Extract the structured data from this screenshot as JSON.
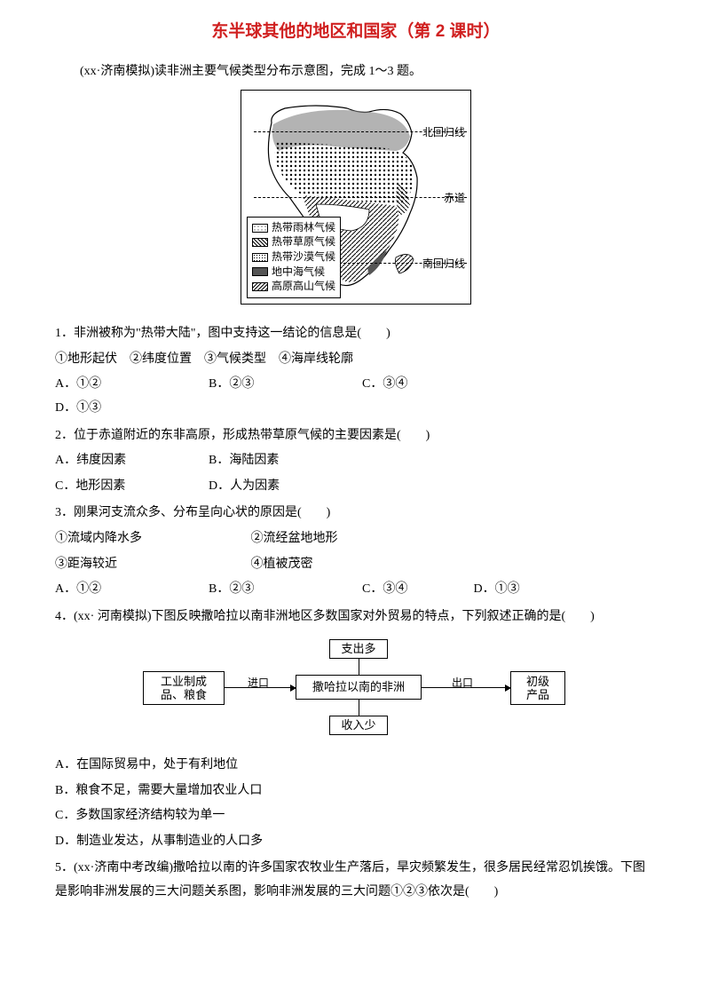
{
  "title": "东半球其他的地区和国家（第 2 课时）",
  "intro": "(xx·济南模拟)读非洲主要气候类型分布示意图，完成 1～3 题。",
  "map": {
    "line_labels": {
      "tropic_n": "北回归线",
      "equator": "赤道",
      "tropic_s": "南回归线"
    },
    "legend": [
      {
        "swatch": "sw-dots",
        "text": "热带雨林气候"
      },
      {
        "swatch": "sw-diag",
        "text": "热带草原气候"
      },
      {
        "swatch": "sw-sand",
        "text": "热带沙漠气候"
      },
      {
        "swatch": "sw-dark",
        "text": "地中海气候"
      },
      {
        "swatch": "sw-hatch",
        "text": "高原高山气候"
      }
    ]
  },
  "q1": {
    "stem": "1．非洲被称为\"热带大陆\"，图中支持这一结论的信息是(　　)",
    "circled": "①地形起伏　②纬度位置　③气候类型　④海岸线轮廓",
    "A": "A．①②",
    "B": "B．②③",
    "C": "C．③④",
    "D": "D．①③"
  },
  "q2": {
    "stem": "2．位于赤道附近的东非高原，形成热带草原气候的主要因素是(　　)",
    "A": "A．纬度因素",
    "B": "B．海陆因素",
    "C": "C．地形因素",
    "D": "D．人为因素"
  },
  "q3": {
    "stem": "3．刚果河支流众多、分布呈向心状的原因是(　　)",
    "l1a": "①流域内降水多",
    "l1b": "②流经盆地地形",
    "l2a": "③距海较近",
    "l2b": "④植被茂密",
    "A": "A．①②",
    "B": "B．②③",
    "C": "C．③④",
    "D": "D．①③"
  },
  "q4": {
    "stem": "4．(xx· 河南模拟)下图反映撒哈拉以南非洲地区多数国家对外贸易的特点，下列叙述正确的是(　　)",
    "diagram": {
      "left": "工业制成\n品、粮食",
      "center": "撒哈拉以南的非洲",
      "right": "初级\n产品",
      "top": "支出多",
      "bottom": "收入少",
      "imp": "进口",
      "exp": "出口"
    },
    "A": "A．在国际贸易中，处于有利地位",
    "B": "B．粮食不足，需要大量增加农业人口",
    "C": "C．多数国家经济结构较为单一",
    "D": "D．制造业发达，从事制造业的人口多"
  },
  "q5": {
    "stem": "5．(xx·济南中考改编)撒哈拉以南的许多国家农牧业生产落后，旱灾频繁发生，很多居民经常忍饥挨饿。下图是影响非洲发展的三大问题关系图，影响非洲发展的三大问题①②③依次是(　　)"
  }
}
